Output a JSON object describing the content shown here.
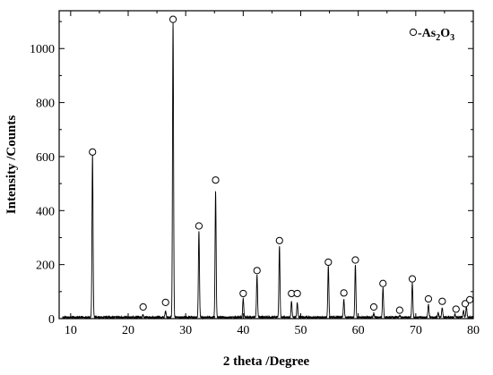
{
  "chart_data": {
    "type": "line",
    "xlabel": "2 theta /Degree",
    "ylabel": "Intensity /Counts",
    "xlim": [
      8,
      80
    ],
    "ylim": [
      0,
      1140
    ],
    "xticks": [
      10,
      20,
      30,
      40,
      50,
      60,
      70,
      80
    ],
    "yticks": [
      0,
      200,
      400,
      600,
      800,
      1000
    ],
    "grid": false,
    "legend_position": "top-right",
    "legend": {
      "marker": "open-circle",
      "prefix": "-As",
      "sub1": "2",
      "mid": "O",
      "sub2": "3"
    },
    "baseline": 5,
    "peaks": [
      {
        "x": 13.8,
        "y": 605
      },
      {
        "x": 22.6,
        "y": 14
      },
      {
        "x": 26.5,
        "y": 28
      },
      {
        "x": 27.8,
        "y": 1095
      },
      {
        "x": 32.3,
        "y": 325
      },
      {
        "x": 35.2,
        "y": 470
      },
      {
        "x": 40.0,
        "y": 75
      },
      {
        "x": 42.4,
        "y": 162
      },
      {
        "x": 46.3,
        "y": 270
      },
      {
        "x": 48.4,
        "y": 65
      },
      {
        "x": 49.4,
        "y": 60
      },
      {
        "x": 54.8,
        "y": 195
      },
      {
        "x": 57.5,
        "y": 72
      },
      {
        "x": 59.5,
        "y": 200
      },
      {
        "x": 62.7,
        "y": 18
      },
      {
        "x": 64.3,
        "y": 115
      },
      {
        "x": 67.2,
        "y": 12
      },
      {
        "x": 69.4,
        "y": 132
      },
      {
        "x": 72.2,
        "y": 55
      },
      {
        "x": 73.9,
        "y": 20
      },
      {
        "x": 74.6,
        "y": 40
      },
      {
        "x": 76.8,
        "y": 15
      },
      {
        "x": 78.3,
        "y": 30
      },
      {
        "x": 78.8,
        "y": 45
      }
    ],
    "markers": [
      {
        "x": 13.8,
        "y": 617
      },
      {
        "x": 22.6,
        "y": 43
      },
      {
        "x": 26.5,
        "y": 60
      },
      {
        "x": 27.8,
        "y": 1108
      },
      {
        "x": 32.3,
        "y": 343
      },
      {
        "x": 35.2,
        "y": 513
      },
      {
        "x": 40.0,
        "y": 93
      },
      {
        "x": 42.4,
        "y": 178
      },
      {
        "x": 46.3,
        "y": 289
      },
      {
        "x": 48.4,
        "y": 93
      },
      {
        "x": 49.4,
        "y": 93
      },
      {
        "x": 54.8,
        "y": 209
      },
      {
        "x": 57.5,
        "y": 95
      },
      {
        "x": 59.5,
        "y": 217
      },
      {
        "x": 62.7,
        "y": 43
      },
      {
        "x": 64.3,
        "y": 130
      },
      {
        "x": 67.2,
        "y": 31
      },
      {
        "x": 69.4,
        "y": 147
      },
      {
        "x": 72.2,
        "y": 73
      },
      {
        "x": 74.6,
        "y": 64
      },
      {
        "x": 77.0,
        "y": 35
      },
      {
        "x": 78.6,
        "y": 55
      },
      {
        "x": 79.4,
        "y": 70
      }
    ]
  }
}
